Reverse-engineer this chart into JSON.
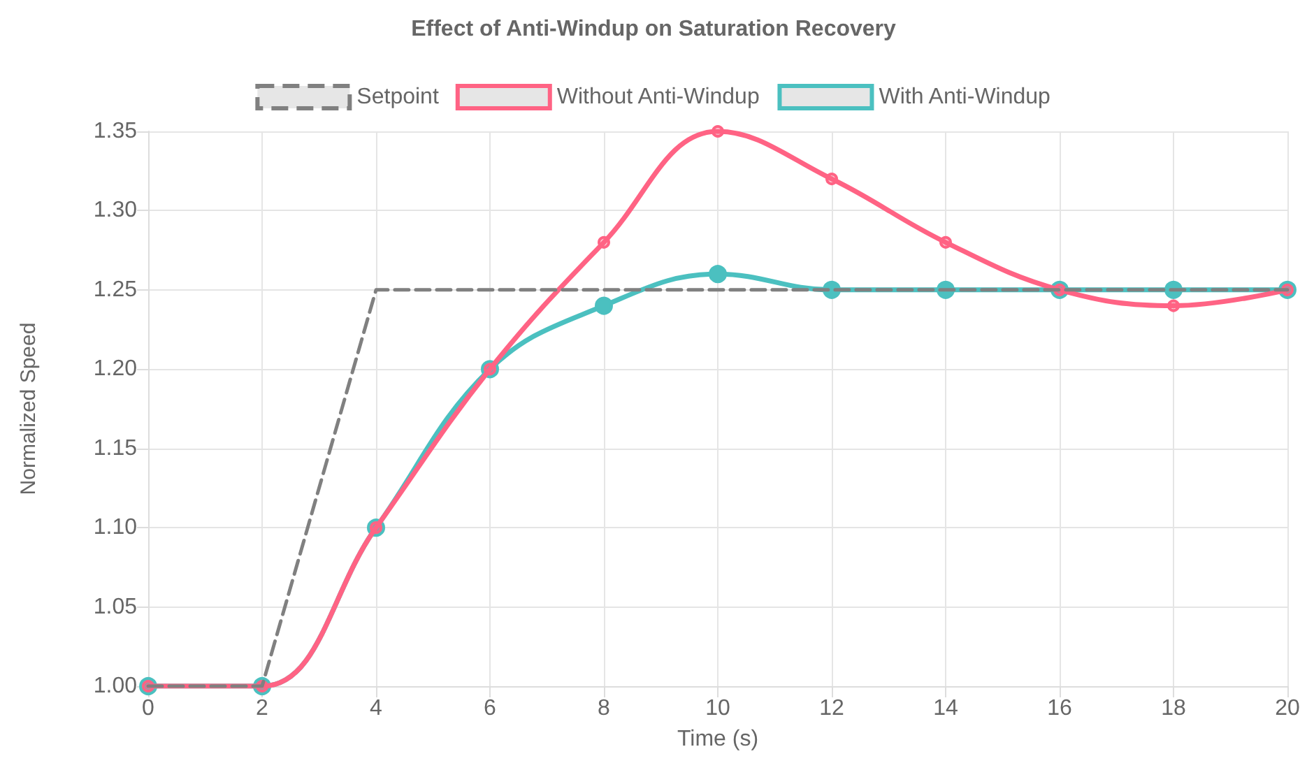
{
  "chart_data": {
    "type": "line",
    "title": "Effect of Anti-Windup on Saturation Recovery",
    "xlabel": "Time (s)",
    "ylabel": "Normalized Speed",
    "x": [
      0,
      2,
      4,
      6,
      8,
      10,
      12,
      14,
      16,
      18,
      20
    ],
    "series": [
      {
        "name": "Setpoint",
        "color": "#808080",
        "values": [
          1.0,
          1.0,
          1.25,
          1.25,
          1.25,
          1.25,
          1.25,
          1.25,
          1.25,
          1.25,
          1.25
        ],
        "line_style": "dashed",
        "marker": "none"
      },
      {
        "name": "Without Anti-Windup",
        "color": "#ff6384",
        "values": [
          1.0,
          1.0,
          1.1,
          1.2,
          1.28,
          1.35,
          1.32,
          1.28,
          1.25,
          1.24,
          1.25
        ],
        "line_style": "solid",
        "marker": "circle"
      },
      {
        "name": "With Anti-Windup",
        "color": "#4bc0c0",
        "values": [
          1.0,
          1.0,
          1.1,
          1.2,
          1.24,
          1.26,
          1.25,
          1.25,
          1.25,
          1.25,
          1.25
        ],
        "line_style": "solid",
        "marker": "circle"
      }
    ],
    "xlim": [
      0,
      20
    ],
    "xticks": [
      0,
      2,
      4,
      6,
      8,
      10,
      12,
      14,
      16,
      18,
      20
    ],
    "ylim": [
      1.0,
      1.35
    ],
    "yticks": [
      {
        "value": 1.0,
        "label": "1.00"
      },
      {
        "value": 1.05,
        "label": "1.05"
      },
      {
        "value": 1.1,
        "label": "1.10"
      },
      {
        "value": 1.15,
        "label": "1.15"
      },
      {
        "value": 1.2,
        "label": "1.20"
      },
      {
        "value": 1.25,
        "label": "1.25"
      },
      {
        "value": 1.3,
        "label": "1.30"
      },
      {
        "value": 1.35,
        "label": "1.35"
      }
    ],
    "grid": true,
    "legend": "top"
  }
}
